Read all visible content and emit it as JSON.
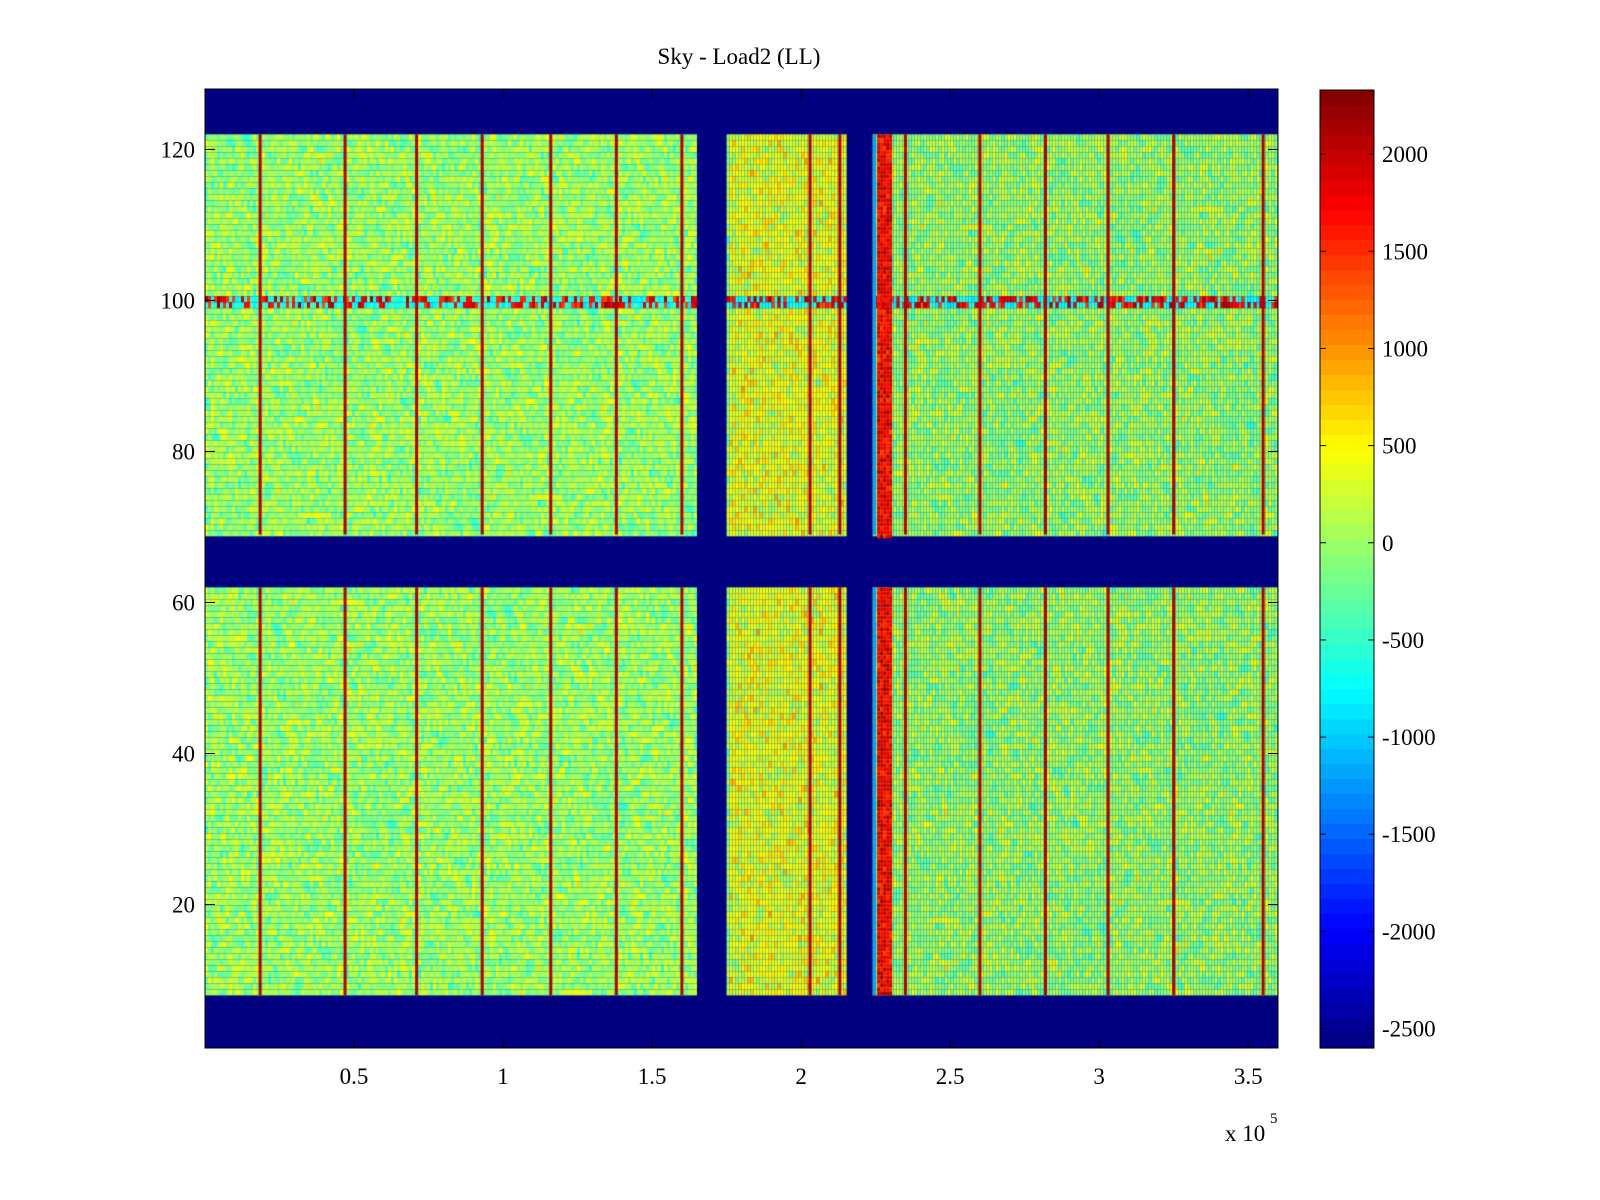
{
  "chart_data": {
    "type": "heatmap",
    "title": "Sky - Load2 (LL)",
    "xlabel": "",
    "ylabel": "",
    "x_exponent_label": "x 10",
    "x_exponent_power": "5",
    "xlim": [
      0,
      3.6
    ],
    "ylim": [
      1,
      128
    ],
    "x_ticks": [
      0.5,
      1,
      1.5,
      2,
      2.5,
      3,
      3.5
    ],
    "x_tick_labels": [
      "0.5",
      "1",
      "1.5",
      "2",
      "2.5",
      "3",
      "3.5"
    ],
    "y_ticks": [
      20,
      40,
      60,
      80,
      100,
      120
    ],
    "y_tick_labels": [
      "20",
      "40",
      "60",
      "80",
      "100",
      "120"
    ],
    "colorbar": {
      "range": [
        -2600,
        2330
      ],
      "ticks": [
        -2500,
        -2000,
        -1500,
        -1000,
        -500,
        0,
        500,
        1000,
        1500,
        2000
      ],
      "tick_labels": [
        "-2500",
        "-2000",
        "-1500",
        "-1000",
        "-500",
        "0",
        "500",
        "1000",
        "1500",
        "2000"
      ],
      "colormap": "jet"
    },
    "masked_value": -2600,
    "masked_rows": [
      [
        1,
        8
      ],
      [
        62,
        69
      ],
      [
        122,
        128
      ]
    ],
    "masked_columns": [
      [
        1.645,
        1.75
      ],
      [
        2.15,
        2.24
      ]
    ],
    "data_blocks_x": [
      [
        0,
        1.645
      ],
      [
        1.75,
        2.15
      ],
      [
        2.24,
        3.6
      ]
    ],
    "data_blocks_y": [
      [
        8,
        62
      ],
      [
        69,
        122
      ]
    ],
    "background_mean": 0,
    "spike_columns_x": [
      0.185,
      0.47,
      0.71,
      0.93,
      1.16,
      1.38,
      1.6,
      2.03,
      2.13,
      2.35,
      2.6,
      2.82,
      3.03,
      3.25,
      3.55
    ],
    "strong_column": {
      "x_range": [
        2.255,
        2.3
      ],
      "value": 1800
    },
    "noisy_row": {
      "y_range": [
        99,
        101
      ]
    },
    "colors": {
      "jet": [
        "#00008f",
        "#0000ff",
        "#00ffff",
        "#ffff00",
        "#ff0000",
        "#800000"
      ]
    }
  }
}
